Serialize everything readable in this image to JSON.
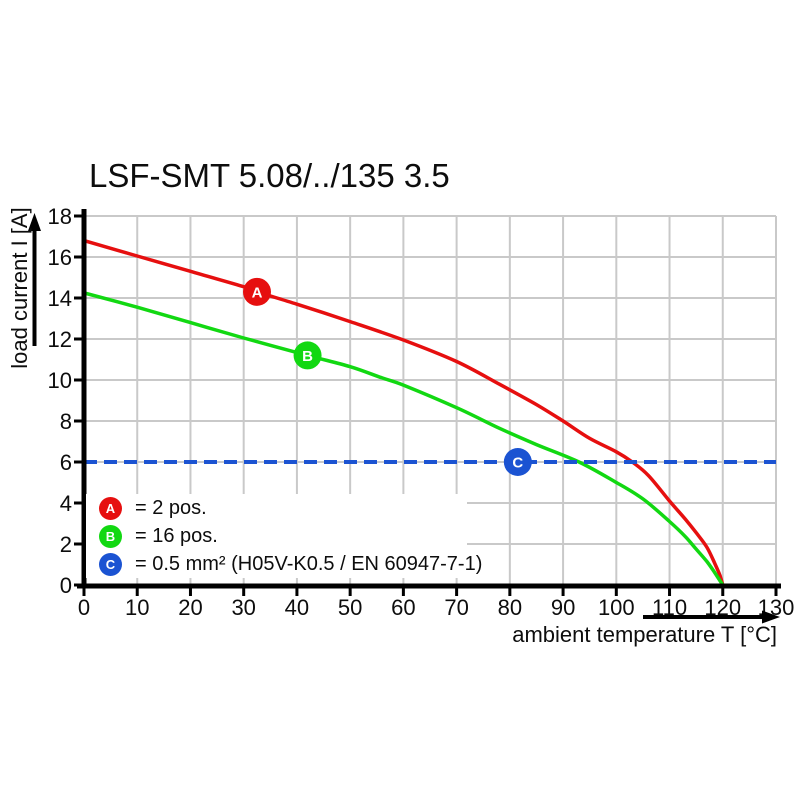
{
  "colors": {
    "background": "#ffffff",
    "grid": "#c9c9c9",
    "axis": "#000000",
    "text": "#0d0d0d",
    "series_a_red": "#e60f0f",
    "series_b_green": "#12d812",
    "series_c_blue": "#1b53d2",
    "marker_letter": "#ffffff"
  },
  "chart_data": {
    "type": "line",
    "title": "LSF-SMT 5.08/../135 3.5",
    "xlabel": "ambient temperature T [°C]",
    "ylabel": "load current I [A]",
    "xlim": [
      0,
      130
    ],
    "ylim": [
      0,
      18
    ],
    "xticks": [
      0,
      10,
      20,
      30,
      40,
      50,
      60,
      70,
      80,
      90,
      100,
      110,
      120,
      130
    ],
    "yticks": [
      0,
      2,
      4,
      6,
      8,
      10,
      12,
      14,
      16,
      18
    ],
    "grid": true,
    "legend_position": "inside bottom-left",
    "series": [
      {
        "letter": "A",
        "label": "= 2 pos.",
        "color": "#e60f0f",
        "kind": "curve",
        "marker_at": [
          32.5,
          14.3
        ],
        "points": [
          [
            0,
            16.8
          ],
          [
            10,
            16.05
          ],
          [
            20,
            15.3
          ],
          [
            30,
            14.55
          ],
          [
            32.5,
            14.3
          ],
          [
            40,
            13.7
          ],
          [
            50,
            12.85
          ],
          [
            60,
            11.95
          ],
          [
            70,
            10.9
          ],
          [
            78,
            9.8
          ],
          [
            85,
            8.8
          ],
          [
            90,
            8.0
          ],
          [
            95,
            7.15
          ],
          [
            100,
            6.5
          ],
          [
            103,
            6.0
          ],
          [
            106,
            5.35
          ],
          [
            110,
            4.1
          ],
          [
            113,
            3.2
          ],
          [
            115,
            2.55
          ],
          [
            117,
            1.85
          ],
          [
            118.5,
            1.05
          ],
          [
            119.5,
            0.45
          ],
          [
            120,
            0
          ]
        ]
      },
      {
        "letter": "B",
        "label": "= 16 pos.",
        "color": "#12d812",
        "kind": "curve",
        "marker_at": [
          42,
          11.2
        ],
        "points": [
          [
            0,
            14.25
          ],
          [
            10,
            13.55
          ],
          [
            20,
            12.8
          ],
          [
            30,
            12.05
          ],
          [
            42,
            11.2
          ],
          [
            50,
            10.65
          ],
          [
            56,
            10.1
          ],
          [
            60,
            9.75
          ],
          [
            70,
            8.65
          ],
          [
            78,
            7.65
          ],
          [
            85,
            6.85
          ],
          [
            93,
            6.0
          ],
          [
            100,
            5.0
          ],
          [
            105,
            4.2
          ],
          [
            110,
            3.1
          ],
          [
            113,
            2.35
          ],
          [
            115,
            1.75
          ],
          [
            117,
            1.15
          ],
          [
            118.5,
            0.6
          ],
          [
            120,
            0
          ]
        ]
      },
      {
        "letter": "C",
        "label": "= 0.5 mm² (H05V-K0.5 / EN 60947-7-1)",
        "color": "#1b53d2",
        "kind": "dashed-hline",
        "y": 6,
        "marker_at": [
          81.5,
          6
        ],
        "points": [
          [
            0,
            6
          ],
          [
            130,
            6
          ]
        ]
      }
    ]
  }
}
